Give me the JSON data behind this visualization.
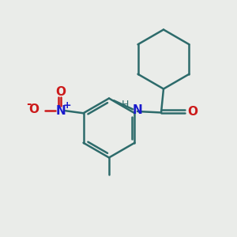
{
  "bg_color": "#eaece9",
  "bond_color": "#2d6b6b",
  "N_color": "#1a1acc",
  "O_color": "#cc1a1a",
  "H_color": "#2d6b6b",
  "linewidth": 1.8,
  "figsize": [
    3.0,
    3.0
  ],
  "dpi": 100,
  "xlim": [
    0,
    10
  ],
  "ylim": [
    0,
    10
  ]
}
